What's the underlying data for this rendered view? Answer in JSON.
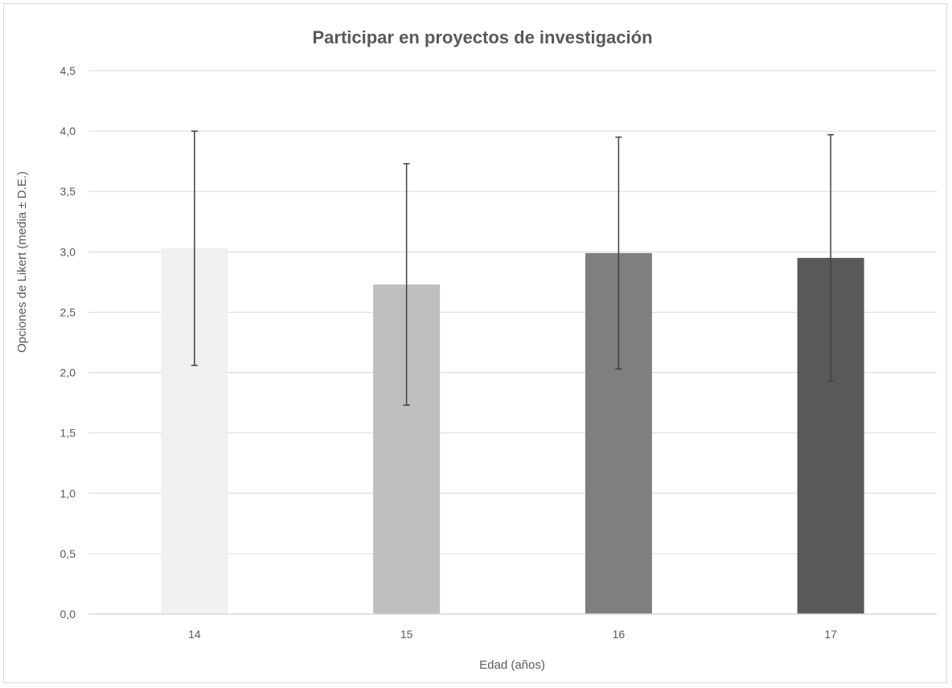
{
  "chart_data": {
    "type": "bar",
    "title": "Participar  en proyectos de investigación",
    "xlabel": "Edad (años)",
    "ylabel": "Opciones de Likert (media ± D.E.)",
    "categories": [
      "14",
      "15",
      "16",
      "17"
    ],
    "values": [
      3.03,
      2.73,
      2.99,
      2.95
    ],
    "error": [
      0.97,
      1.0,
      0.96,
      1.02
    ],
    "ylim": [
      0,
      4.5
    ],
    "yticks": [
      "0,0",
      "0,5",
      "1,0",
      "1,5",
      "2,0",
      "2,5",
      "3,0",
      "3,5",
      "4,0",
      "4,5"
    ],
    "grid": true,
    "legend": "none",
    "colors": [
      "#f0f0f0",
      "#bfbfbf",
      "#7f7f7f",
      "#595959"
    ],
    "gridline_color": "#d9d9d9",
    "errorbar_color": "#404040"
  }
}
